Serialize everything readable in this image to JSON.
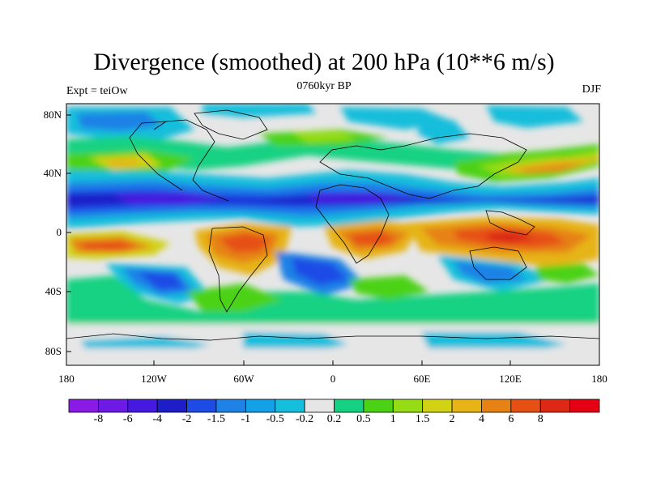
{
  "title": "Divergence (smoothed) at 200 hPa (10**6 m/s)",
  "subtitle_left": "Expt = teiOw",
  "subtitle_center": "0760kyr BP",
  "subtitle_right": "DJF",
  "lat_labels": [
    "80N",
    "40N",
    "0",
    "40S",
    "80S"
  ],
  "lon_labels": [
    "180",
    "120W",
    "60W",
    "0",
    "60E",
    "120E",
    "180"
  ],
  "colorbar": {
    "colors": [
      "#8a1ae6",
      "#6e1ae6",
      "#4619e0",
      "#1e1ec8",
      "#1e4be6",
      "#1e82e6",
      "#14a0e6",
      "#14bedc",
      "#e6e6e6",
      "#14d282",
      "#4bd214",
      "#96dc14",
      "#d2d214",
      "#e6b414",
      "#e68214",
      "#e65014",
      "#dc2814",
      "#e60014"
    ],
    "labels": [
      "-8",
      "-6",
      "-4",
      "-2",
      "-1.5",
      "-1",
      "-0.5",
      "-0.2",
      "0.2",
      "0.5",
      "1",
      "1.5",
      "2",
      "4",
      "6",
      "8"
    ]
  }
}
